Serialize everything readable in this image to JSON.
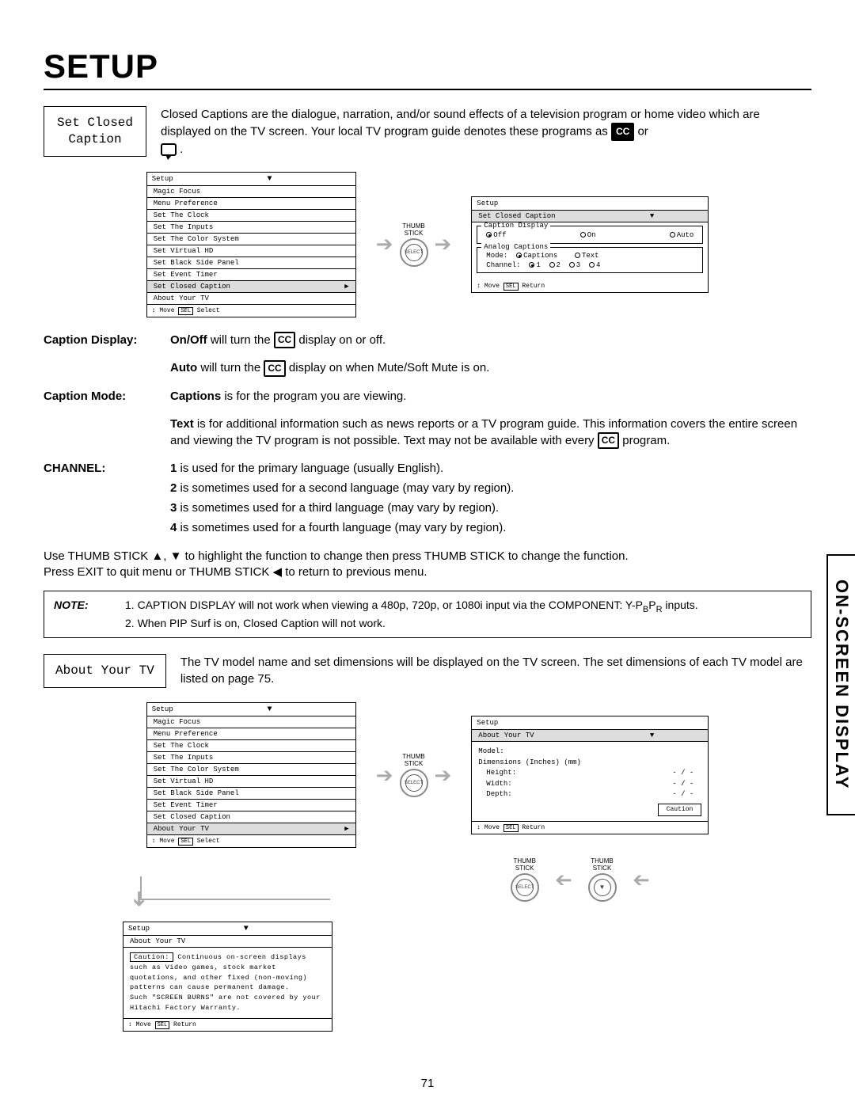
{
  "page": {
    "title": "SETUP",
    "number": "71",
    "vertical_tab": "ON-SCREEN DISPLAY"
  },
  "closed_caption": {
    "box_label_line1": "Set Closed",
    "box_label_line2": "Caption",
    "intro_part1": "Closed Captions are the dialogue, narration, and/or sound effects of a television program or home video which are displayed on the TV screen.  Your local TV program guide denotes these programs as ",
    "intro_or": " or ",
    "cc_text": "CC",
    "menu1": {
      "header": "Setup",
      "items": [
        "Magic Focus",
        "Menu Preference",
        "Set The Clock",
        "Set The Inputs",
        "Set The Color System",
        "Set Virtual HD",
        "Set Black Side Panel",
        "Set Event Timer",
        "Set Closed Caption",
        "About Your TV"
      ],
      "highlight_index": 8,
      "foot": "Move",
      "foot_sel": "SEL",
      "foot_select": "Select"
    },
    "thumb_label": "THUMB\nSTICK",
    "thumb_select": "SELECT",
    "menu2": {
      "header": "Setup",
      "sub_header": "Set Closed Caption",
      "group1_title": "Caption Display",
      "opt_off": "Off",
      "opt_on": "On",
      "opt_auto": "Auto",
      "group2_title": "Analog Captions",
      "mode_label": "Mode:",
      "mode_captions": "Captions",
      "mode_text": "Text",
      "channel_label": "Channel:",
      "ch1": "1",
      "ch2": "2",
      "ch3": "3",
      "ch4": "4",
      "foot": "Move",
      "foot_sel": "SEL",
      "foot_return": "Return"
    }
  },
  "defs": {
    "caption_display_label": "Caption Display:",
    "onoff_bold": "On/Off",
    "onoff_text": " will turn the ",
    "onoff_text2": " display on or off.",
    "auto_bold": "Auto",
    "auto_text": " will turn the ",
    "auto_text2": " display on when Mute/Soft Mute is on.",
    "caption_mode_label": "Caption Mode:",
    "captions_bold": "Captions",
    "captions_text": " is for the program you are viewing.",
    "text_bold": "Text",
    "text_text": " is for additional information such as news reports or a TV program guide.  This information covers the entire screen and viewing the TV program is not possible.  Text may not be available with every ",
    "text_text2": " program.",
    "channel_label": "CHANNEL:",
    "ch1": "1",
    "ch1_text": " is used for the primary language (usually English).",
    "ch2": "2",
    "ch2_text": " is sometimes used for a second language (may vary by region).",
    "ch3": "3",
    "ch3_text": " is sometimes used for a third language (may vary by region).",
    "ch4": "4",
    "ch4_text": " is sometimes used for a fourth language (may vary by region)."
  },
  "instructions": {
    "line1": "Use THUMB STICK ▲, ▼ to highlight the function to change then press THUMB STICK to change the function.",
    "line2": "Press EXIT to quit menu or THUMB STICK ◀ to return to previous menu."
  },
  "note": {
    "label": "NOTE:",
    "item1_pre": "1.   CAPTION DISPLAY will not work when viewing a 480p, 720p, or 1080i input via the COMPONENT: Y-P",
    "sub_b": "B",
    "mid": "P",
    "sub_r": "R",
    "item1_post": " inputs.",
    "item2": "2.   When PIP Surf is on, Closed Caption will not work."
  },
  "about_tv": {
    "box_label": "About Your TV",
    "intro": "The TV model name and set dimensions will be displayed on the TV screen.  The set dimensions of each TV model are listed on page 75.",
    "menu1": {
      "header": "Setup",
      "items": [
        "Magic Focus",
        "Menu Preference",
        "Set The Clock",
        "Set The Inputs",
        "Set The Color System",
        "Set Virtual HD",
        "Set Black Side Panel",
        "Set Event Timer",
        "Set Closed Caption",
        "About Your TV"
      ],
      "highlight_index": 9,
      "foot": "Move",
      "foot_sel": "SEL",
      "foot_select": "Select"
    },
    "menu2": {
      "header": "Setup",
      "sub_header": "About Your TV",
      "model_label": "Model:",
      "dims_label": "Dimensions  (Inches)  (mm)",
      "height": "Height:",
      "width": "Width:",
      "depth": "Depth:",
      "dash": "-  /  -",
      "caution_btn": "Caution",
      "foot": "Move",
      "foot_sel": "SEL",
      "foot_return": "Return"
    },
    "menu3": {
      "header": "Setup",
      "sub_header": "About Your TV",
      "caution_label": "Caution:",
      "caution_text": " Continuous on-screen displays such as Video games, stock market quotations, and other fixed (non-moving) patterns can cause permanent damage.\nSuch \"SCREEN BURNS\" are not covered by your Hitachi Factory Warranty.",
      "foot": "Move",
      "foot_sel": "SEL",
      "foot_return": "Return"
    }
  }
}
